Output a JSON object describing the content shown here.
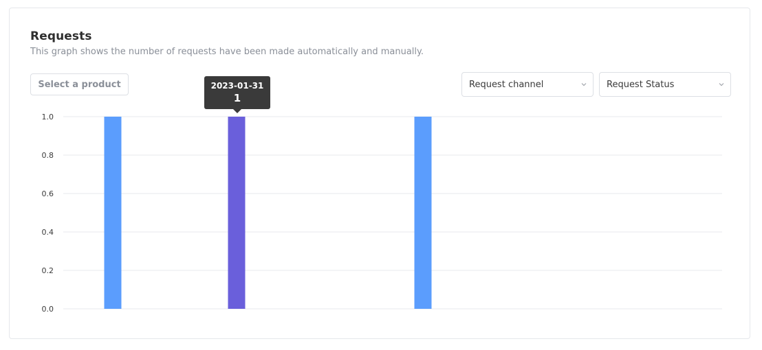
{
  "header": {
    "title": "Requests",
    "subtitle": "This graph shows the number of requests have been made automatically and manually."
  },
  "filters": {
    "product_button": "Select a product",
    "channel_select": {
      "selected": "Request channel",
      "icon": "chevron-down-icon"
    },
    "status_select": {
      "selected": "Request Status",
      "icon": "chevron-down-icon"
    }
  },
  "tooltip": {
    "date": "2023-01-31",
    "value": "1"
  },
  "colors": {
    "bar_default": "#5b9dfd",
    "bar_highlight": "#6a5fdb",
    "grid": "#e7e9ec",
    "tick_text": "#3a3a3a"
  },
  "chart_data": {
    "type": "bar",
    "ylim": [
      0,
      1
    ],
    "yticks": [
      "0.0",
      "0.2",
      "0.4",
      "0.6",
      "0.8",
      "1.0"
    ],
    "bars": [
      {
        "value": 1,
        "highlight": false
      },
      {
        "date": "2023-01-31",
        "value": 1,
        "highlight": true
      },
      {
        "value": 1,
        "highlight": false
      }
    ],
    "grid": true
  }
}
